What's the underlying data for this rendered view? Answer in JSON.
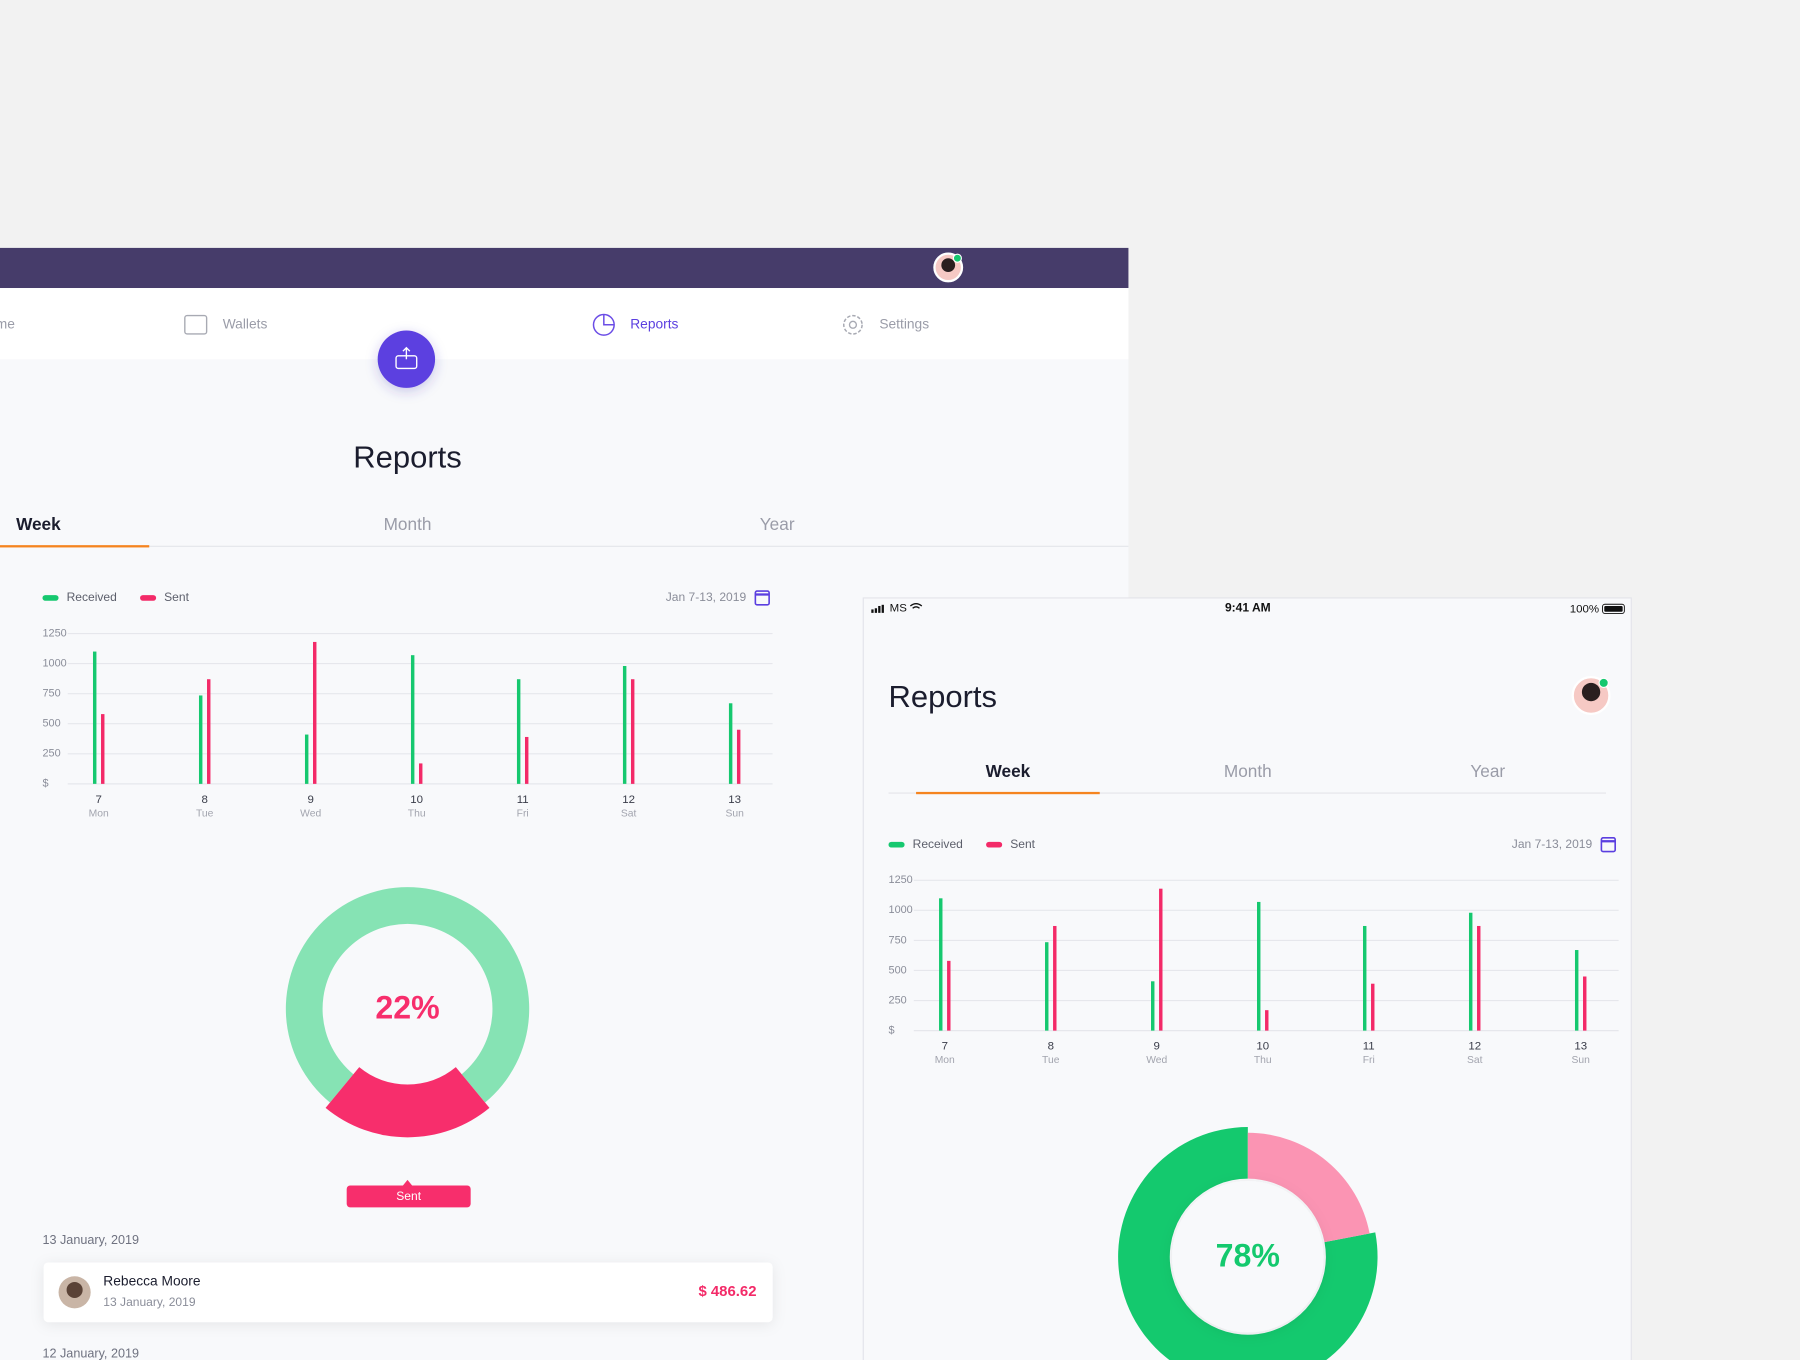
{
  "left_screen": {
    "nav": [
      "Home",
      "Wallets",
      "Reports",
      "Settings"
    ],
    "title": "Reports",
    "tabs": [
      "Week",
      "Month",
      "Year"
    ],
    "transactions": [
      {
        "date": "13 January, 2019",
        "items": [
          {
            "name": "Rebecca Moore",
            "date": "13 January, 2019",
            "amount": "$ 486.62"
          }
        ]
      },
      {
        "date": "12 January, 2019"
      }
    ]
  },
  "right_screen": {
    "status_bar": {
      "carrier": "MS",
      "time": "9:41 AM",
      "battery": "100%"
    },
    "title": "Reports",
    "tabs": [
      "Week",
      "Month",
      "Year"
    ]
  },
  "chart_data": [
    {
      "type": "bar",
      "date_range": "Jan 7-13, 2019",
      "categories": [
        "7",
        "8",
        "9",
        "10",
        "11",
        "12",
        "13"
      ],
      "weekdays": [
        "Mon",
        "Tue",
        "Wed",
        "Thu",
        "Fri",
        "Sat",
        "Sun"
      ],
      "series": [
        {
          "name": "Received",
          "color": "#16c86f",
          "values": [
            1100,
            735,
            410,
            1070,
            870,
            980,
            670
          ]
        },
        {
          "name": "Sent",
          "color": "#f32a68",
          "values": [
            580,
            870,
            1180,
            170,
            390,
            870,
            450
          ]
        }
      ],
      "ylim": [
        0,
        1250
      ],
      "yticks": [
        {
          "value": 0,
          "label": "$"
        },
        250,
        500,
        750,
        1000,
        1250
      ],
      "grid": true
    },
    {
      "type": "donut",
      "segments": [
        {
          "name": "Sent",
          "value": 22,
          "value_label": "22%",
          "color": "#f72e6c"
        },
        {
          "value": 78,
          "color": "#86e3b4"
        }
      ]
    },
    {
      "type": "bar",
      "date_range": "Jan 7-13, 2019",
      "categories": [
        "7",
        "8",
        "9",
        "10",
        "11",
        "12",
        "13"
      ],
      "weekdays": [
        "Mon",
        "Tue",
        "Wed",
        "Thu",
        "Fri",
        "Sat",
        "Sun"
      ],
      "series": [
        {
          "name": "Received",
          "color": "#16c86f",
          "values": [
            1100,
            735,
            410,
            1070,
            870,
            980,
            670
          ]
        },
        {
          "name": "Sent",
          "color": "#f32a68",
          "values": [
            580,
            870,
            1180,
            170,
            390,
            870,
            450
          ]
        }
      ],
      "ylim": [
        0,
        1250
      ],
      "yticks": [
        {
          "value": 0,
          "label": "$"
        },
        250,
        500,
        750,
        1000,
        1250
      ],
      "grid": true
    },
    {
      "type": "donut",
      "segments": [
        {
          "value": 22,
          "color": "#fb94b3"
        },
        {
          "value": 78,
          "value_label": "78%",
          "color": "#14c96e"
        }
      ]
    }
  ]
}
